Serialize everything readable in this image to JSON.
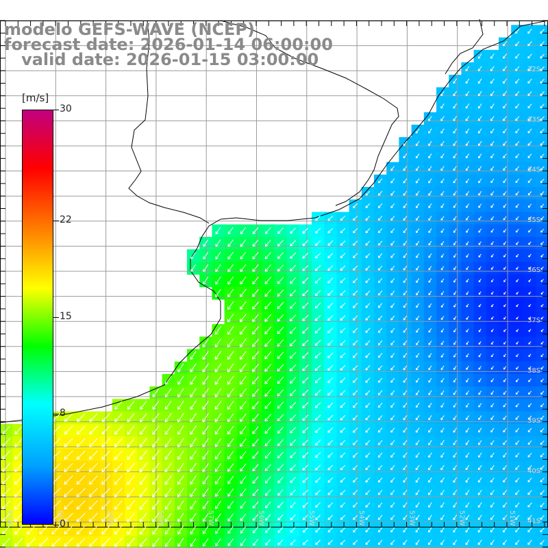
{
  "header": {
    "line1": "modelo GEFS-WAVE (NCEP)",
    "line2": "forecast date: 2026-01-14 06:00:00",
    "line3": "valid date: 2026-01-15 03:00:00"
  },
  "legend": {
    "unit": "[m/s]",
    "ticks": [
      "30",
      "22",
      "15",
      "8",
      "0"
    ],
    "tick_values": [
      30,
      22,
      15,
      8,
      0
    ],
    "range": [
      0,
      30
    ],
    "colors": [
      "#0000ff",
      "#00a0ff",
      "#00ffff",
      "#00ff00",
      "#ffff00",
      "#ff8000",
      "#ff0000",
      "#c0007f"
    ]
  },
  "map": {
    "lat_labels": [
      "32S",
      "33S",
      "34S",
      "35S",
      "36S",
      "37S",
      "38S",
      "39S",
      "40S",
      "41S"
    ],
    "lon_labels": [
      "61W",
      "60W",
      "59W",
      "58W",
      "57W",
      "56W",
      "55W",
      "54W",
      "53W",
      "52W",
      "51W"
    ],
    "grid": true,
    "land_color": "#ffffff",
    "arrow_color": "#ffffff"
  }
}
